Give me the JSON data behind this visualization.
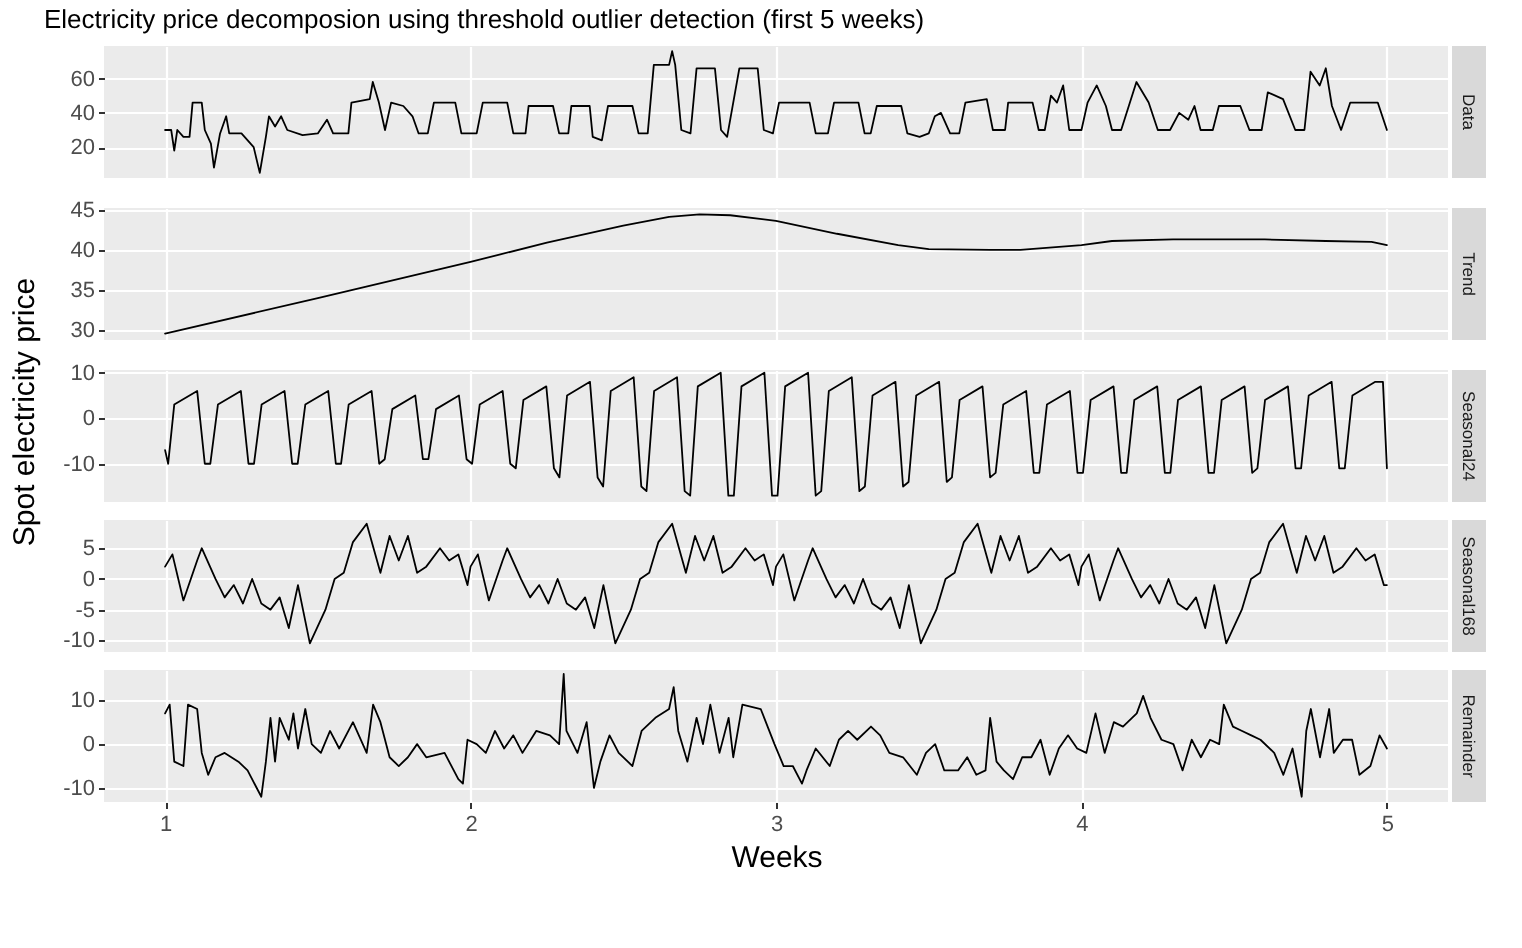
{
  "chart_data": [
    {
      "type": "line",
      "title": "Electricity price decomposion using threshold outlier detection (first 5 weeks)",
      "y2label": "Data",
      "xlim": [
        0.8,
        5.2
      ],
      "xticks": [
        1,
        2,
        3,
        4,
        5
      ],
      "ylim": [
        2,
        79
      ],
      "yticks": [
        20,
        40,
        60
      ],
      "grid": true,
      "tick_labels": "y",
      "x": [
        1.0,
        1.02,
        1.03,
        1.04,
        1.06,
        1.08,
        1.09,
        1.12,
        1.13,
        1.15,
        1.16,
        1.18,
        1.2,
        1.21,
        1.25,
        1.29,
        1.31,
        1.33,
        1.34,
        1.36,
        1.38,
        1.4,
        1.45,
        1.5,
        1.53,
        1.55,
        1.6,
        1.61,
        1.67,
        1.68,
        1.7,
        1.72,
        1.74,
        1.78,
        1.81,
        1.83,
        1.86,
        1.88,
        1.95,
        1.97,
        2.02,
        2.04,
        2.12,
        2.14,
        2.18,
        2.19,
        2.27,
        2.29,
        2.32,
        2.33,
        2.39,
        2.4,
        2.43,
        2.45,
        2.53,
        2.55,
        2.58,
        2.6,
        2.65,
        2.66,
        2.67,
        2.69,
        2.72,
        2.74,
        2.8,
        2.82,
        2.84,
        2.88,
        2.94,
        2.96,
        2.99,
        3.01,
        3.11,
        3.13,
        3.17,
        3.19,
        3.27,
        3.29,
        3.31,
        3.33,
        3.41,
        3.43,
        3.47,
        3.5,
        3.52,
        3.54,
        3.57,
        3.6,
        3.62,
        3.69,
        3.71,
        3.75,
        3.76,
        3.84,
        3.86,
        3.88,
        3.9,
        3.92,
        3.94,
        3.96,
        4.0,
        4.02,
        4.05,
        4.08,
        4.1,
        4.13,
        4.18,
        4.22,
        4.25,
        4.29,
        4.32,
        4.35,
        4.37,
        4.39,
        4.43,
        4.45,
        4.52,
        4.55,
        4.59,
        4.61,
        4.66,
        4.7,
        4.73,
        4.75,
        4.78,
        4.8,
        4.82,
        4.85,
        4.88,
        4.97,
        5.0
      ],
      "series": [
        {
          "color": "#000000",
          "values": [
            30,
            30,
            18,
            30,
            26,
            26,
            46,
            46,
            30,
            22,
            8,
            28,
            38,
            28,
            28,
            20,
            5,
            26,
            38,
            32,
            38,
            30,
            27,
            28,
            36,
            28,
            28,
            46,
            48,
            58,
            46,
            30,
            46,
            44,
            38,
            28,
            28,
            46,
            46,
            28,
            28,
            46,
            46,
            28,
            28,
            44,
            44,
            28,
            28,
            44,
            44,
            26,
            24,
            44,
            44,
            28,
            28,
            68,
            68,
            76,
            68,
            30,
            28,
            66,
            66,
            30,
            26,
            66,
            66,
            30,
            28,
            46,
            46,
            28,
            28,
            46,
            46,
            28,
            28,
            44,
            44,
            28,
            26,
            28,
            38,
            40,
            28,
            28,
            46,
            48,
            30,
            30,
            46,
            46,
            30,
            30,
            50,
            46,
            56,
            30,
            30,
            46,
            56,
            44,
            30,
            30,
            58,
            46,
            30,
            30,
            40,
            36,
            44,
            30,
            30,
            44,
            44,
            30,
            30,
            52,
            48,
            30,
            30,
            64,
            56,
            66,
            44,
            30,
            46,
            46,
            30
          ]
        }
      ]
    },
    {
      "type": "line",
      "y2label": "Trend",
      "xlim": [
        0.8,
        5.2
      ],
      "xticks": [
        1,
        2,
        3,
        4,
        5
      ],
      "ylim": [
        28.8,
        45.2
      ],
      "yticks": [
        30,
        35,
        40,
        45
      ],
      "grid": true,
      "tick_labels": "y",
      "x": [
        1.0,
        1.5,
        2.0,
        2.25,
        2.5,
        2.65,
        2.75,
        2.85,
        3.0,
        3.2,
        3.4,
        3.5,
        3.7,
        3.8,
        4.0,
        4.1,
        4.3,
        4.6,
        4.8,
        4.95,
        5.0
      ],
      "series": [
        {
          "color": "#000000",
          "values": [
            29.6,
            34.0,
            38.5,
            40.9,
            43.0,
            44.1,
            44.4,
            44.3,
            43.6,
            42.0,
            40.6,
            40.1,
            40.0,
            40.0,
            40.6,
            41.1,
            41.3,
            41.3,
            41.1,
            41.0,
            40.6
          ]
        }
      ]
    },
    {
      "type": "line",
      "ylabel": "Spot electricity price",
      "y2label": "Seasonal24",
      "xlim": [
        0.8,
        5.2
      ],
      "xticks": [
        1,
        2,
        3,
        4,
        5
      ],
      "ylim": [
        -18.4,
        10.6
      ],
      "yticks": [
        -10,
        0,
        10
      ],
      "grid": true,
      "tick_labels": "y",
      "x": [
        1.0,
        1.01,
        1.03,
        1.105,
        1.13,
        1.148,
        1.173,
        1.248,
        1.273,
        1.291,
        1.316,
        1.391,
        1.416,
        1.434,
        1.459,
        1.534,
        1.559,
        1.576,
        1.601,
        1.676,
        1.701,
        1.719,
        1.744,
        1.819,
        1.844,
        1.862,
        1.887,
        1.962,
        1.987,
        2.005,
        2.03,
        2.105,
        2.13,
        2.148,
        2.173,
        2.248,
        2.273,
        2.291,
        2.316,
        2.391,
        2.416,
        2.434,
        2.459,
        2.534,
        2.559,
        2.576,
        2.601,
        2.676,
        2.701,
        2.719,
        2.744,
        2.819,
        2.844,
        2.862,
        2.887,
        2.962,
        2.987,
        3.005,
        3.03,
        3.105,
        3.13,
        3.148,
        3.173,
        3.248,
        3.273,
        3.291,
        3.316,
        3.391,
        3.416,
        3.434,
        3.459,
        3.534,
        3.559,
        3.576,
        3.601,
        3.676,
        3.701,
        3.719,
        3.744,
        3.819,
        3.844,
        3.862,
        3.887,
        3.962,
        3.987,
        4.005,
        4.03,
        4.105,
        4.13,
        4.148,
        4.173,
        4.248,
        4.273,
        4.291,
        4.316,
        4.391,
        4.416,
        4.434,
        4.459,
        4.534,
        4.559,
        4.576,
        4.601,
        4.676,
        4.701,
        4.719,
        4.744,
        4.819,
        4.844,
        4.862,
        4.887,
        4.962,
        4.987,
        5.0
      ],
      "series": [
        {
          "color": "#000000",
          "values": [
            -7,
            -10,
            3,
            6,
            -10,
            -10,
            3,
            6,
            -10,
            -10,
            3,
            6,
            -10,
            -10,
            3,
            6,
            -10,
            -10,
            3,
            6,
            -10,
            -9,
            2,
            5,
            -9,
            -9,
            2,
            5,
            -9,
            -10,
            3,
            6,
            -10,
            -11,
            4,
            7,
            -11,
            -13,
            5,
            8,
            -13,
            -15,
            6,
            9,
            -15,
            -16,
            6,
            9,
            -16,
            -17,
            7,
            10,
            -17,
            -17,
            7,
            10,
            -17,
            -17,
            7,
            10,
            -17,
            -16,
            6,
            9,
            -16,
            -15,
            5,
            8,
            -15,
            -14,
            5,
            8,
            -14,
            -13,
            4,
            7,
            -13,
            -12,
            3,
            6,
            -12,
            -12,
            3,
            6,
            -12,
            -12,
            4,
            7,
            -12,
            -12,
            4,
            7,
            -12,
            -12,
            4,
            7,
            -12,
            -12,
            4,
            7,
            -12,
            -11,
            4,
            7,
            -11,
            -11,
            5,
            8,
            -11,
            -11,
            5,
            8,
            8,
            -11
          ]
        }
      ]
    },
    {
      "type": "line",
      "y2label": "Seasonal168",
      "xlim": [
        0.8,
        5.2
      ],
      "xticks": [
        1,
        2,
        3,
        4,
        5
      ],
      "ylim": [
        -11.9,
        9.6
      ],
      "yticks": [
        -10,
        -5,
        0,
        5
      ],
      "grid": true,
      "tick_labels": "y",
      "x": [
        1,
        1.024,
        1.06,
        1.105,
        1.12,
        1.165,
        1.195,
        1.225,
        1.255,
        1.285,
        1.315,
        1.345,
        1.375,
        1.405,
        1.435,
        1.474,
        1.525,
        1.555,
        1.585,
        1.615,
        1.66,
        1.705,
        1.735,
        1.765,
        1.795,
        1.825,
        1.855,
        1.9,
        1.93,
        1.96,
        1.99,
        2,
        2.024,
        2.06,
        2.105,
        2.12,
        2.165,
        2.195,
        2.225,
        2.255,
        2.285,
        2.315,
        2.345,
        2.375,
        2.405,
        2.435,
        2.474,
        2.525,
        2.555,
        2.585,
        2.615,
        2.66,
        2.705,
        2.735,
        2.765,
        2.795,
        2.825,
        2.855,
        2.9,
        2.93,
        2.96,
        2.99,
        3,
        3.024,
        3.06,
        3.105,
        3.12,
        3.165,
        3.195,
        3.225,
        3.255,
        3.285,
        3.315,
        3.345,
        3.375,
        3.405,
        3.435,
        3.474,
        3.525,
        3.555,
        3.585,
        3.615,
        3.66,
        3.705,
        3.735,
        3.765,
        3.795,
        3.825,
        3.855,
        3.9,
        3.93,
        3.96,
        3.99,
        4,
        4.024,
        4.06,
        4.105,
        4.12,
        4.165,
        4.195,
        4.225,
        4.255,
        4.285,
        4.315,
        4.345,
        4.375,
        4.405,
        4.435,
        4.474,
        4.525,
        4.555,
        4.585,
        4.615,
        4.66,
        4.705,
        4.735,
        4.765,
        4.795,
        4.825,
        4.855,
        4.9,
        4.93,
        4.96,
        4.99,
        5
      ],
      "series": [
        {
          "color": "#000000",
          "values": [
            2,
            4,
            -3.5,
            3,
            5,
            0,
            -3,
            -1,
            -4,
            0,
            -4,
            -5,
            -3,
            -8,
            -1,
            -10.5,
            -5,
            0,
            1,
            6,
            9,
            1,
            7,
            3,
            7,
            1,
            2,
            5,
            3,
            4,
            -1,
            2,
            4,
            -3.5,
            3,
            5,
            0,
            -3,
            -1,
            -4,
            0,
            -4,
            -5,
            -3,
            -8,
            -1,
            -10.5,
            -5,
            0,
            1,
            6,
            9,
            1,
            7,
            3,
            7,
            1,
            2,
            5,
            3,
            4,
            -1,
            2,
            4,
            -3.5,
            3,
            5,
            0,
            -3,
            -1,
            -4,
            0,
            -4,
            -5,
            -3,
            -8,
            -1,
            -10.5,
            -5,
            0,
            1,
            6,
            9,
            1,
            7,
            3,
            7,
            1,
            2,
            5,
            3,
            4,
            -1,
            2,
            4,
            -3.5,
            3,
            5,
            0,
            -3,
            -1,
            -4,
            0,
            -4,
            -5,
            -3,
            -8,
            -1,
            -10.5,
            -5,
            0,
            1,
            6,
            9,
            1,
            7,
            3,
            7,
            1,
            2,
            5,
            3,
            4,
            -1,
            -1
          ]
        }
      ]
    },
    {
      "type": "line",
      "xlabel": "Weeks",
      "y2label": "Remainder",
      "xlim": [
        0.8,
        5.2
      ],
      "xticks": [
        1,
        2,
        3,
        4,
        5
      ],
      "ylim": [
        -13.2,
        16.9
      ],
      "yticks": [
        -10,
        0,
        10
      ],
      "grid": true,
      "x": [
        1.0,
        1.015,
        1.03,
        1.06,
        1.075,
        1.105,
        1.12,
        1.141,
        1.165,
        1.195,
        1.24,
        1.27,
        1.3,
        1.315,
        1.33,
        1.345,
        1.36,
        1.375,
        1.405,
        1.42,
        1.435,
        1.459,
        1.48,
        1.51,
        1.54,
        1.57,
        1.615,
        1.66,
        1.681,
        1.705,
        1.735,
        1.765,
        1.795,
        1.825,
        1.855,
        1.915,
        1.96,
        1.975,
        1.99,
        2.02,
        2.05,
        2.08,
        2.11,
        2.14,
        2.17,
        2.215,
        2.26,
        2.29,
        2.305,
        2.314,
        2.35,
        2.38,
        2.404,
        2.425,
        2.455,
        2.485,
        2.53,
        2.56,
        2.605,
        2.65,
        2.665,
        2.68,
        2.71,
        2.74,
        2.761,
        2.785,
        2.815,
        2.845,
        2.86,
        2.89,
        2.95,
        2.995,
        3.025,
        3.055,
        3.085,
        3.1,
        3.13,
        3.176,
        3.206,
        3.236,
        3.266,
        3.311,
        3.341,
        3.371,
        3.416,
        3.461,
        3.491,
        3.521,
        3.551,
        3.596,
        3.626,
        3.656,
        3.686,
        3.701,
        3.722,
        3.746,
        3.776,
        3.806,
        3.836,
        3.866,
        3.896,
        3.926,
        3.956,
        3.986,
        4.016,
        4.046,
        4.076,
        4.106,
        4.136,
        4.181,
        4.202,
        4.226,
        4.262,
        4.301,
        4.331,
        4.361,
        4.391,
        4.421,
        4.451,
        4.466,
        4.496,
        4.526,
        4.556,
        4.586,
        4.631,
        4.661,
        4.691,
        4.721,
        4.736,
        4.751,
        4.781,
        4.811,
        4.826,
        4.856,
        4.886,
        4.91,
        4.946,
        4.976,
        5.0
      ],
      "series": [
        {
          "color": "#000000",
          "values": [
            7,
            9,
            -4,
            -5,
            9,
            8,
            -2,
            -7,
            -3,
            -2,
            -4,
            -6,
            -10,
            -12,
            -4,
            6,
            -4,
            6,
            1,
            7,
            -1,
            8,
            0,
            -2,
            3,
            -1,
            5,
            -2,
            9,
            5,
            -3,
            -5,
            -3,
            0,
            -3,
            -2,
            -8,
            -9,
            1,
            0,
            -2,
            3,
            -1,
            2,
            -2,
            3,
            2,
            0,
            16,
            3,
            -2,
            5,
            -10,
            -4,
            2,
            -2,
            -5,
            3,
            6,
            8,
            13,
            3,
            -4,
            6,
            0,
            9,
            -2,
            6,
            -3,
            9,
            8,
            0,
            -5,
            -5,
            -9,
            -6,
            -1,
            -5,
            1,
            3,
            1,
            4,
            2,
            -2,
            -3,
            -7,
            -2,
            0,
            -6,
            -6,
            -3,
            -7,
            -6,
            6,
            -4,
            -6,
            -8,
            -3,
            -3,
            1,
            -7,
            -1,
            2,
            -1,
            -2,
            7,
            -2,
            5,
            4,
            7,
            11,
            6,
            1,
            0,
            -6,
            1,
            -3,
            1,
            0,
            9,
            4,
            3,
            2,
            1,
            -2,
            -7,
            -1,
            -12,
            3,
            8,
            -3,
            8,
            -2,
            1,
            1,
            -7,
            -5,
            2,
            -1
          ]
        }
      ]
    }
  ]
}
